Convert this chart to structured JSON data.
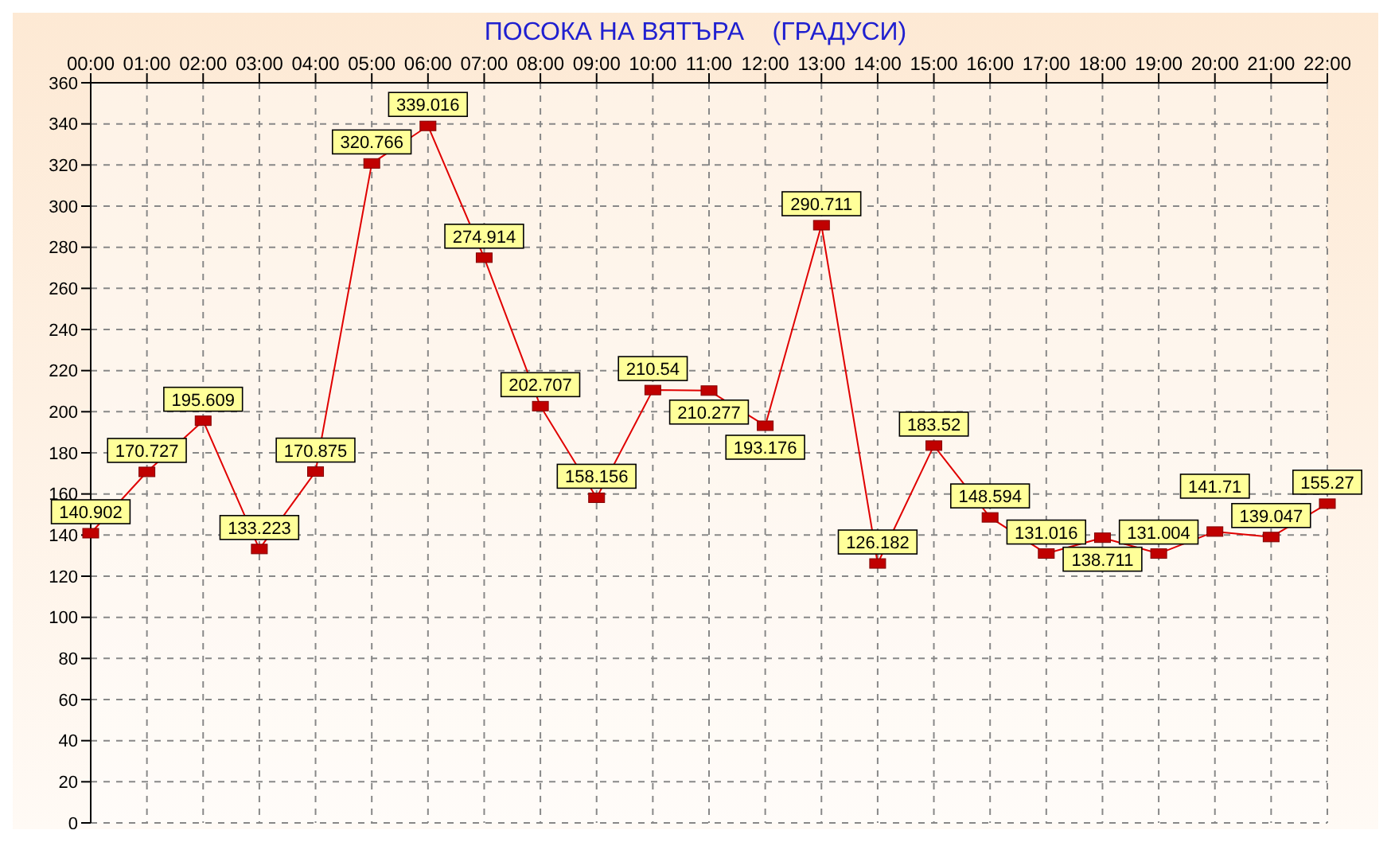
{
  "chart_data": {
    "type": "line",
    "title": "ПОСОКА НА ВЯТЪРА    (ГРАДУСИ)",
    "categories": [
      "00:00",
      "01:00",
      "02:00",
      "03:00",
      "04:00",
      "05:00",
      "06:00",
      "07:00",
      "08:00",
      "09:00",
      "10:00",
      "11:00",
      "12:00",
      "13:00",
      "14:00",
      "15:00",
      "16:00",
      "17:00",
      "18:00",
      "19:00",
      "20:00",
      "21:00",
      "22:00"
    ],
    "series": [
      {
        "color": "#e00000",
        "values": [
          140.902,
          170.727,
          195.609,
          133.223,
          170.875,
          320.766,
          339.016,
          274.914,
          202.707,
          158.156,
          210.54,
          210.277,
          193.176,
          290.711,
          126.182,
          183.52,
          148.594,
          131.016,
          138.711,
          131.004,
          141.71,
          139.047,
          155.27
        ]
      }
    ],
    "ylim": [
      0,
      360
    ],
    "yticks": [
      0,
      20,
      40,
      60,
      80,
      100,
      120,
      140,
      160,
      180,
      200,
      220,
      240,
      260,
      280,
      300,
      320,
      340,
      360
    ],
    "grid": true,
    "marker": "square",
    "line_style": "solid",
    "data_labels": true,
    "legend": false
  }
}
